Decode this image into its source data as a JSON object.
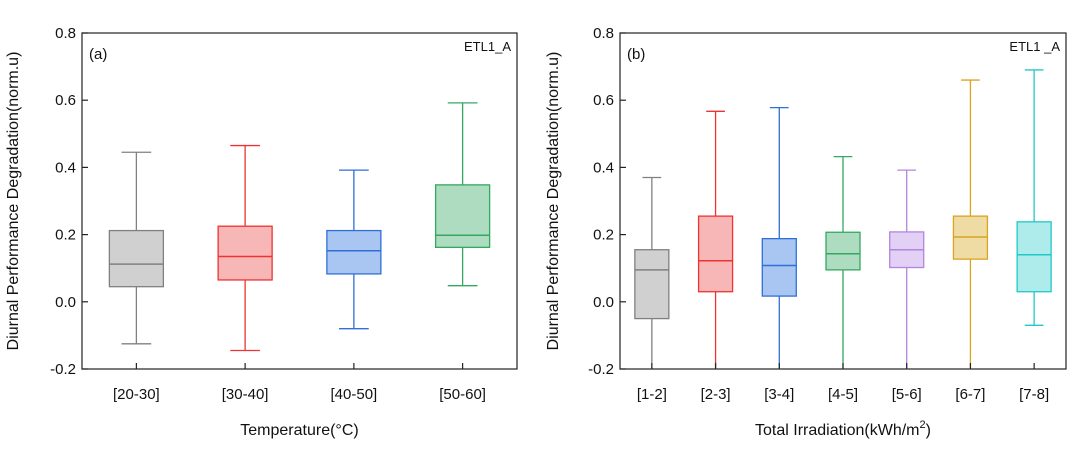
{
  "chart_data": [
    {
      "type": "box",
      "panel_label": "(a)",
      "annotation": "ETL1_A",
      "xlabel": "Temperature(°C)",
      "ylabel": "Diurnal Performance Degradation(norm.u)",
      "ylim": [
        -0.2,
        0.8
      ],
      "yticks": [
        "-0.2",
        "0.0",
        "0.2",
        "0.4",
        "0.6",
        "0.8"
      ],
      "grid": false,
      "categories": [
        "[20-30]",
        "[30-40]",
        "[40-50]",
        "[50-60]"
      ],
      "colors": [
        "#808080",
        "#ee3333",
        "#2f6fd8",
        "#33a860"
      ],
      "fills": [
        "#d0d0d0",
        "#f7b7b7",
        "#a9c6f2",
        "#aedcc0"
      ],
      "boxes": [
        {
          "min": -0.125,
          "q1": 0.045,
          "median": 0.112,
          "q3": 0.212,
          "max": 0.445
        },
        {
          "min": -0.145,
          "q1": 0.065,
          "median": 0.135,
          "q3": 0.225,
          "max": 0.465
        },
        {
          "min": -0.08,
          "q1": 0.083,
          "median": 0.152,
          "q3": 0.212,
          "max": 0.392
        },
        {
          "min": 0.048,
          "q1": 0.162,
          "median": 0.198,
          "q3": 0.348,
          "max": 0.592
        }
      ]
    },
    {
      "type": "box",
      "panel_label": "(b)",
      "annotation": "ETL1 _A",
      "xlabel": "Total Irradiation(kWh/m",
      "xlabel_sup": "2",
      "xlabel_end": ")",
      "ylabel": "Diurnal Performance Degradation(norm.u)",
      "ylim": [
        -0.2,
        0.8
      ],
      "yticks": [
        "-0.2",
        "0.0",
        "0.2",
        "0.4",
        "0.6",
        "0.8"
      ],
      "grid": false,
      "categories": [
        "[1-2]",
        "[2-3]",
        "[3-4]",
        "[4-5]",
        "[5-6]",
        "[6-7]",
        "[7-8]"
      ],
      "colors": [
        "#808080",
        "#ee3333",
        "#2f6fd8",
        "#33a860",
        "#b285e0",
        "#d9a520",
        "#22c8c8"
      ],
      "fills": [
        "#d0d0d0",
        "#f7b7b7",
        "#a9c6f2",
        "#aedcc0",
        "#e2d0f5",
        "#efdba4",
        "#aeeceb"
      ],
      "boxes": [
        {
          "min": -0.2,
          "q1": -0.05,
          "median": 0.095,
          "q3": 0.155,
          "max": 0.37
        },
        {
          "min": -0.2,
          "q1": 0.03,
          "median": 0.122,
          "q3": 0.255,
          "max": 0.567
        },
        {
          "min": -0.2,
          "q1": 0.017,
          "median": 0.108,
          "q3": 0.188,
          "max": 0.578
        },
        {
          "min": -0.2,
          "q1": 0.095,
          "median": 0.143,
          "q3": 0.207,
          "max": 0.432
        },
        {
          "min": -0.2,
          "q1": 0.102,
          "median": 0.155,
          "q3": 0.208,
          "max": 0.392
        },
        {
          "min": -0.2,
          "q1": 0.127,
          "median": 0.193,
          "q3": 0.255,
          "max": 0.66
        },
        {
          "min": -0.07,
          "q1": 0.03,
          "median": 0.14,
          "q3": 0.238,
          "max": 0.69
        }
      ]
    }
  ]
}
